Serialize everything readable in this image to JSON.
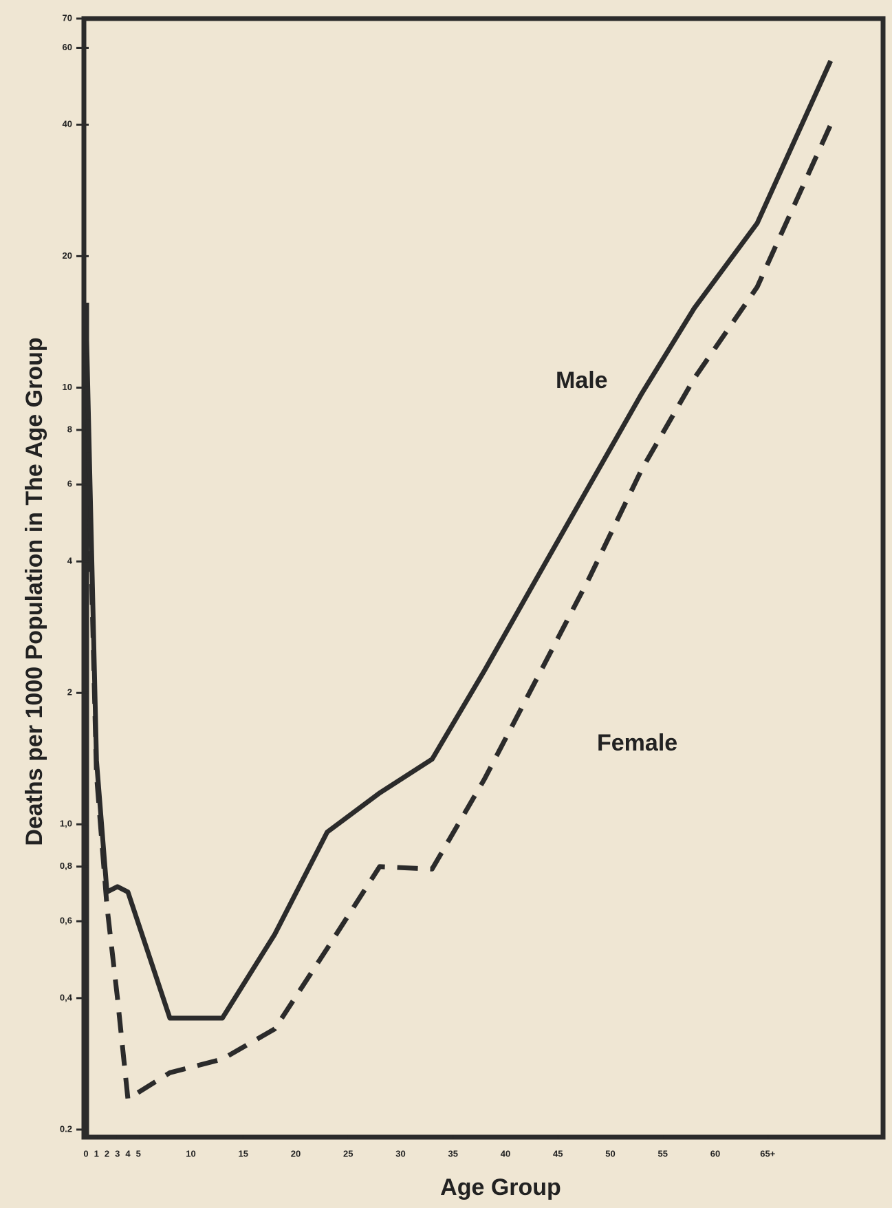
{
  "chart_data": {
    "type": "line",
    "x_label": "Age Group",
    "y_label": "Deaths per 1000 Population in The Age Group",
    "x": [
      0,
      1,
      2,
      3,
      4,
      8,
      13,
      18,
      23,
      28,
      33,
      38,
      43,
      48,
      53,
      58,
      64,
      71
    ],
    "series": [
      {
        "name": "Male",
        "color": "#2b2b2b",
        "line_style": "solid",
        "values": [
          15,
          1.4,
          0.7,
          0.72,
          0.7,
          0.36,
          0.36,
          0.56,
          0.96,
          1.18,
          1.41,
          2.25,
          3.67,
          5.97,
          9.7,
          15.2,
          23.8,
          56
        ]
      },
      {
        "name": "Female",
        "color": "#2b2b2b",
        "line_style": "dashed",
        "values": [
          12,
          1.3,
          0.65,
          0.4,
          0.235,
          0.27,
          0.29,
          0.34,
          0.52,
          0.8,
          0.79,
          1.27,
          2.16,
          3.67,
          6.5,
          10.5,
          17,
          40
        ]
      }
    ],
    "xlim": [
      0,
      76
    ],
    "xticks": [
      0,
      1,
      2,
      3,
      4,
      5,
      10,
      15,
      20,
      25,
      30,
      35,
      40,
      45,
      50,
      55,
      60,
      {
        "value": 65,
        "label": "65+"
      }
    ],
    "ylim": [
      0.2,
      70
    ],
    "y_scale": "log",
    "yticks": [
      0.2,
      {
        "value": 0.4,
        "label": "0,4"
      },
      {
        "value": 0.6,
        "label": "0,6"
      },
      {
        "value": 0.8,
        "label": "0,8"
      },
      {
        "value": 1,
        "label": "1,0"
      },
      2,
      4,
      6,
      8,
      10,
      20,
      40,
      60,
      70
    ],
    "grid": false
  }
}
